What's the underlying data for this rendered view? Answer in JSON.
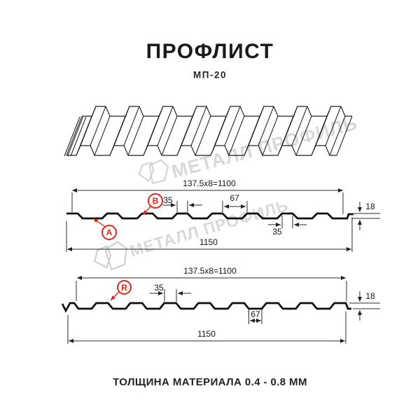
{
  "page": {
    "title": "ПРОФЛИСТ",
    "model": "МП-20",
    "footer": "ТОЛЩИНА МАТЕРИАЛА 0.4 - 0.8 ММ"
  },
  "watermark": {
    "text": "МЕТАЛЛ ПРОФИЛЬ"
  },
  "section_top": {
    "dim_formula": "137,5x8=1100",
    "dim_top_width": "35",
    "dim_pitch": "67",
    "dim_height": "18",
    "dim_bottom_width": "35",
    "dim_total": "1150",
    "label_a": "A",
    "label_b": "B"
  },
  "section_bottom": {
    "dim_formula": "137.5x8=1100",
    "dim_top_width": "35",
    "dim_pitch": "67",
    "dim_height": "18",
    "dim_total": "1150",
    "label_r": "R"
  },
  "colors": {
    "accent_red": "#e2231a",
    "line_black": "#1a1a1a",
    "watermark_gray": "#d9d9d9"
  }
}
